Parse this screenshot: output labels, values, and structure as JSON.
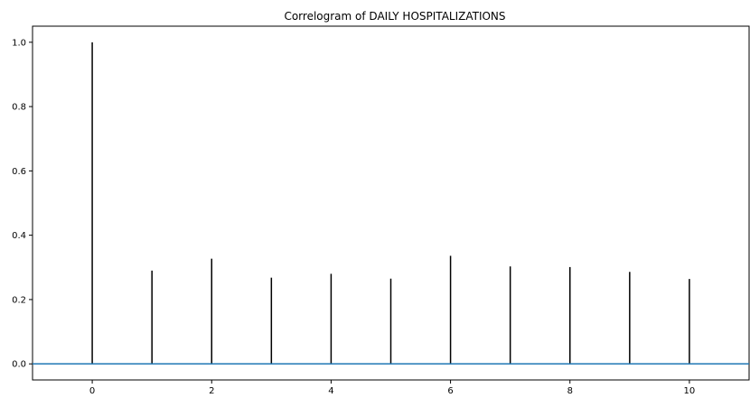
{
  "chart_data": {
    "type": "bar",
    "title": "Correlogram of DAILY HOSPITALIZATIONS",
    "xlabel": "",
    "ylabel": "",
    "x": [
      0,
      1,
      2,
      3,
      4,
      5,
      6,
      7,
      8,
      9,
      10
    ],
    "values": [
      1.0,
      0.29,
      0.327,
      0.268,
      0.28,
      0.265,
      0.336,
      0.303,
      0.301,
      0.286,
      0.264
    ],
    "xlim": [
      -1,
      11
    ],
    "ylim": [
      -0.05,
      1.05
    ],
    "xticks": [
      0,
      2,
      4,
      6,
      8,
      10
    ],
    "xtick_labels": [
      "0",
      "2",
      "4",
      "6",
      "8",
      "10"
    ],
    "yticks": [
      0.0,
      0.2,
      0.4,
      0.6,
      0.8,
      1.0
    ],
    "ytick_labels": [
      "0.0",
      "0.2",
      "0.4",
      "0.6",
      "0.8",
      "1.0"
    ],
    "baseline": 0,
    "stem_color": "#000000",
    "baseline_color": "#1f77b4",
    "grid": false,
    "legend": "none"
  }
}
